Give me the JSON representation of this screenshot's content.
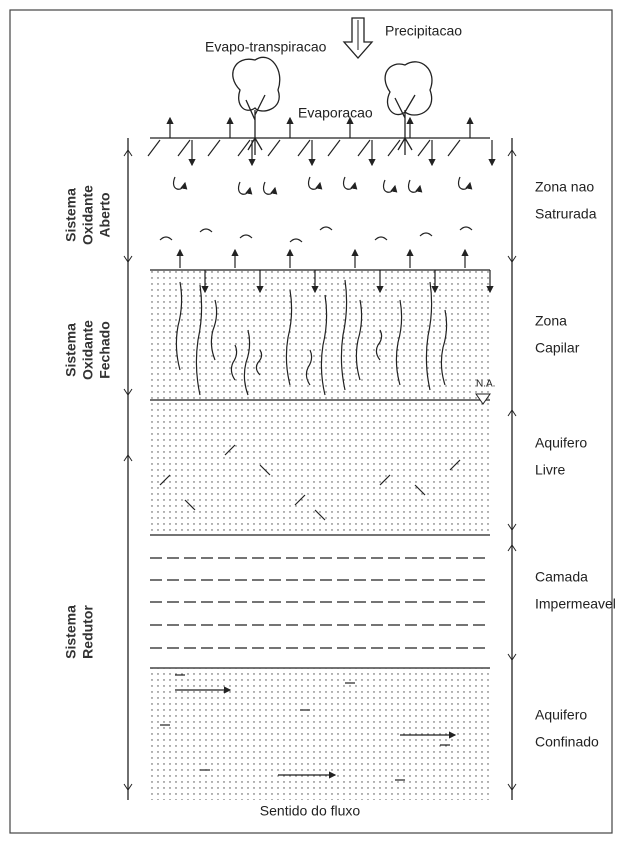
{
  "top_labels": {
    "precipitation": "Precipitacao",
    "evapotranspiration": "Evapo-transpiracao",
    "evaporation": "Evaporacao"
  },
  "left_labels": [
    {
      "lines": [
        "Sistema",
        "Oxidante",
        "Aberto"
      ]
    },
    {
      "lines": [
        "Sistema",
        "Oxidante",
        "Fechado"
      ]
    },
    {
      "lines": [
        "Sistema",
        "Redutor"
      ]
    }
  ],
  "right_labels": [
    {
      "lines": [
        "Zona nao",
        "Satrurada"
      ]
    },
    {
      "lines": [
        "Zona",
        "Capilar"
      ]
    },
    {
      "lines": [
        "Aquifero",
        "Livre"
      ]
    },
    {
      "lines": [
        "Camada",
        "Impermeavel"
      ]
    },
    {
      "lines": [
        "Aquifero",
        "Confinado"
      ]
    }
  ],
  "water_table": "N.A.",
  "footer": "Sentido do fluxo"
}
